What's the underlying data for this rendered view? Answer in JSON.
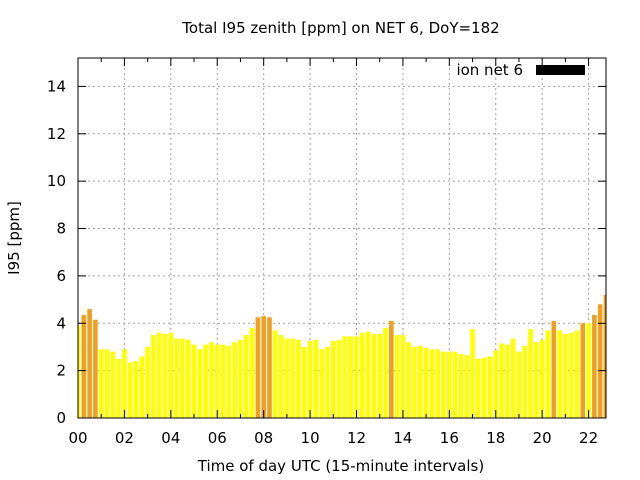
{
  "chart_data": {
    "type": "bar",
    "title": "Total I95 zenith [ppm] on NET 6, DoY=182",
    "xlabel": "Time of day UTC (15-minute intervals)",
    "ylabel": "I95 [ppm]",
    "xlim": [
      0,
      22.75
    ],
    "ylim": [
      0,
      15.2
    ],
    "xticks": [
      "00",
      "02",
      "04",
      "06",
      "08",
      "10",
      "12",
      "14",
      "16",
      "18",
      "20",
      "22"
    ],
    "yticks": [
      "0",
      "2",
      "4",
      "6",
      "8",
      "10",
      "12",
      "14"
    ],
    "grid": true,
    "legend": {
      "position": "top-right",
      "entries": [
        {
          "label": "ion net 6",
          "color": "#000000"
        }
      ]
    },
    "colors": {
      "low": "#ffff00",
      "high": "#f0a020"
    },
    "bar_width_hours": 0.2,
    "series": [
      {
        "x": [
          0,
          0.25,
          0.5,
          0.75,
          1,
          1.25,
          1.5,
          1.75,
          2,
          2.25,
          2.5,
          2.75,
          3,
          3.25,
          3.5,
          3.75,
          4,
          4.25,
          4.5,
          4.75,
          5,
          5.25,
          5.5,
          5.75,
          6,
          6.25,
          6.5,
          6.75,
          7,
          7.25,
          7.5,
          7.75,
          8,
          8.25,
          8.5,
          8.75,
          9,
          9.25,
          9.5,
          9.75,
          10,
          10.25,
          10.5,
          10.75,
          11,
          11.25,
          11.5,
          11.75,
          12,
          12.25,
          12.5,
          12.75,
          13,
          13.25,
          13.5,
          13.75,
          14,
          14.25,
          14.5,
          14.75,
          15,
          15.25,
          15.5,
          15.75,
          16,
          16.25,
          16.5,
          16.75,
          17,
          17.25,
          17.5,
          17.75,
          18,
          18.25,
          18.5,
          18.75,
          19,
          19.25,
          19.5,
          19.75,
          20,
          20.25,
          20.5,
          20.75,
          21,
          21.25,
          21.5,
          21.75,
          22,
          22.25,
          22.5,
          22.75
        ],
        "values": [
          3.9,
          4.35,
          4.6,
          4.15,
          2.9,
          2.9,
          2.8,
          2.5,
          2.9,
          2.35,
          2.4,
          2.6,
          3.0,
          3.5,
          3.6,
          3.55,
          3.6,
          3.35,
          3.35,
          3.3,
          3.1,
          2.9,
          3.1,
          3.2,
          3.1,
          3.1,
          3.05,
          3.2,
          3.3,
          3.5,
          3.8,
          4.25,
          4.3,
          4.25,
          3.7,
          3.5,
          3.35,
          3.35,
          3.3,
          3.0,
          3.25,
          3.3,
          2.9,
          3.0,
          3.25,
          3.3,
          3.45,
          3.45,
          3.45,
          3.6,
          3.65,
          3.55,
          3.55,
          3.8,
          4.1,
          3.5,
          3.5,
          3.2,
          3.0,
          3.05,
          2.95,
          2.9,
          2.9,
          2.8,
          2.8,
          2.8,
          2.7,
          2.65,
          3.75,
          2.5,
          2.55,
          2.6,
          2.85,
          3.15,
          3.1,
          3.35,
          2.8,
          3.05,
          3.75,
          3.2,
          3.3,
          3.7,
          4.1,
          3.7,
          3.55,
          3.6,
          3.7,
          4.0,
          4.0,
          4.35,
          4.8,
          5.2
        ],
        "highlight": [
          0,
          1,
          1,
          1,
          0,
          0,
          0,
          0,
          0,
          0,
          0,
          0,
          0,
          0,
          0,
          0,
          0,
          0,
          0,
          0,
          0,
          0,
          0,
          0,
          0,
          0,
          0,
          0,
          0,
          0,
          0,
          1,
          1,
          1,
          0,
          0,
          0,
          0,
          0,
          0,
          0,
          0,
          0,
          0,
          0,
          0,
          0,
          0,
          0,
          0,
          0,
          0,
          0,
          0,
          1,
          0,
          0,
          0,
          0,
          0,
          0,
          0,
          0,
          0,
          0,
          0,
          0,
          0,
          0,
          0,
          0,
          0,
          0,
          0,
          0,
          0,
          0,
          0,
          0,
          0,
          0,
          0,
          1,
          0,
          0,
          0,
          0,
          1,
          0,
          1,
          1,
          1
        ]
      }
    ]
  }
}
